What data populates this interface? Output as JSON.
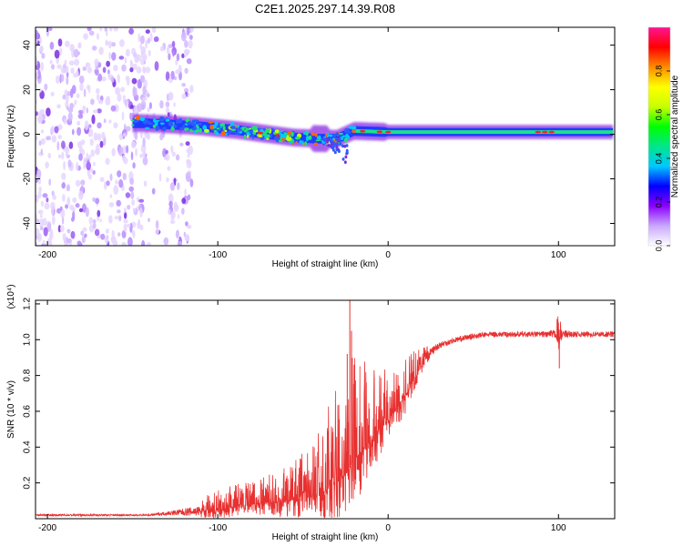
{
  "title": "C2E1.2025.297.14.39.R08",
  "chart_data": [
    {
      "type": "heatmap",
      "name": "spectrogram",
      "xlabel": "Height of straight line (km)",
      "ylabel": "Frequency (Hz)",
      "xlim": [
        -207,
        133
      ],
      "ylim": [
        -50,
        48
      ],
      "xticks": [
        -200,
        -100,
        0,
        100
      ],
      "xtick_labels": [
        "-200",
        "-100",
        "0",
        "100"
      ],
      "yticks": [
        -40,
        -20,
        0,
        20,
        40
      ],
      "ytick_labels": [
        "-40",
        "-20",
        "0",
        "20",
        "40"
      ],
      "noise_region_x": [
        -207,
        -115
      ],
      "band_ridge": {
        "x": [
          -145,
          -130,
          -110,
          -90,
          -70,
          -55,
          -40,
          -30,
          -20,
          0,
          50,
          100,
          133
        ],
        "y": [
          5,
          4.5,
          3.5,
          2,
          0,
          -1.5,
          -2,
          -2,
          1.5,
          1,
          1,
          1,
          1
        ]
      },
      "hotspots_x": [
        -75,
        -65,
        -15,
        -5,
        0,
        88,
        92,
        96
      ],
      "colorbar": {
        "label": "Normalized spectral amplitude",
        "range": [
          0,
          1
        ],
        "ticks": [
          0,
          0.2,
          0.4,
          0.6,
          0.8
        ],
        "tick_labels": [
          "0.0",
          "0.2",
          "0.4",
          "0.6",
          "0.8"
        ],
        "colors": [
          "#ffffff",
          "#c8a8ff",
          "#8c00ff",
          "#0000ff",
          "#00c8ff",
          "#00e68c",
          "#00ff00",
          "#c8ff00",
          "#ffff00",
          "#ff8c00",
          "#ff0000",
          "#ff1493"
        ]
      }
    },
    {
      "type": "line",
      "name": "snr",
      "xlabel": "Height of straight line (km)",
      "ylabel": "SNR (10 * v/v)",
      "multiplier": "(x10⁴)",
      "xlim": [
        -207,
        133
      ],
      "ylim": [
        0,
        1.22
      ],
      "xticks": [
        -200,
        -100,
        0,
        100
      ],
      "xtick_labels": [
        "-200",
        "-100",
        "0",
        "100"
      ],
      "yticks": [
        0.2,
        0.4,
        0.6,
        0.8,
        1.0,
        1.2
      ],
      "ytick_labels": [
        "0.2",
        "0.4",
        "0.6",
        "0.8",
        "1.0",
        "1.2"
      ],
      "color": "#e83030",
      "envelope": {
        "x": [
          -207,
          -140,
          -130,
          -115,
          -100,
          -80,
          -60,
          -45,
          -38,
          -30,
          -25,
          -20,
          -15,
          -10,
          -5,
          0,
          5,
          10,
          15,
          20,
          25,
          30,
          40,
          50,
          60,
          70,
          80,
          90,
          98,
          100,
          102,
          110,
          120,
          133
        ],
        "base": [
          0.02,
          0.02,
          0.03,
          0.04,
          0.05,
          0.08,
          0.1,
          0.12,
          0.15,
          0.2,
          0.25,
          0.32,
          0.4,
          0.45,
          0.5,
          0.55,
          0.62,
          0.68,
          0.78,
          0.86,
          0.93,
          0.97,
          1.0,
          1.02,
          1.03,
          1.03,
          1.03,
          1.03,
          1.03,
          1.0,
          1.03,
          1.03,
          1.03,
          1.03
        ],
        "amp": [
          0.01,
          0.01,
          0.02,
          0.05,
          0.08,
          0.1,
          0.15,
          0.2,
          0.3,
          0.4,
          0.45,
          0.45,
          0.4,
          0.3,
          0.25,
          0.2,
          0.18,
          0.15,
          0.12,
          0.08,
          0.05,
          0.04,
          0.03,
          0.03,
          0.03,
          0.03,
          0.03,
          0.03,
          0.05,
          0.1,
          0.05,
          0.03,
          0.03,
          0.03
        ]
      },
      "spikes": [
        {
          "x": -22.5,
          "y": 1.22
        },
        {
          "x": -21.5,
          "y": 1.05
        },
        {
          "x": -24,
          "y": 0.92
        },
        {
          "x": 99.5,
          "y": 1.11
        },
        {
          "x": 100.5,
          "y": 0.84
        }
      ]
    }
  ]
}
